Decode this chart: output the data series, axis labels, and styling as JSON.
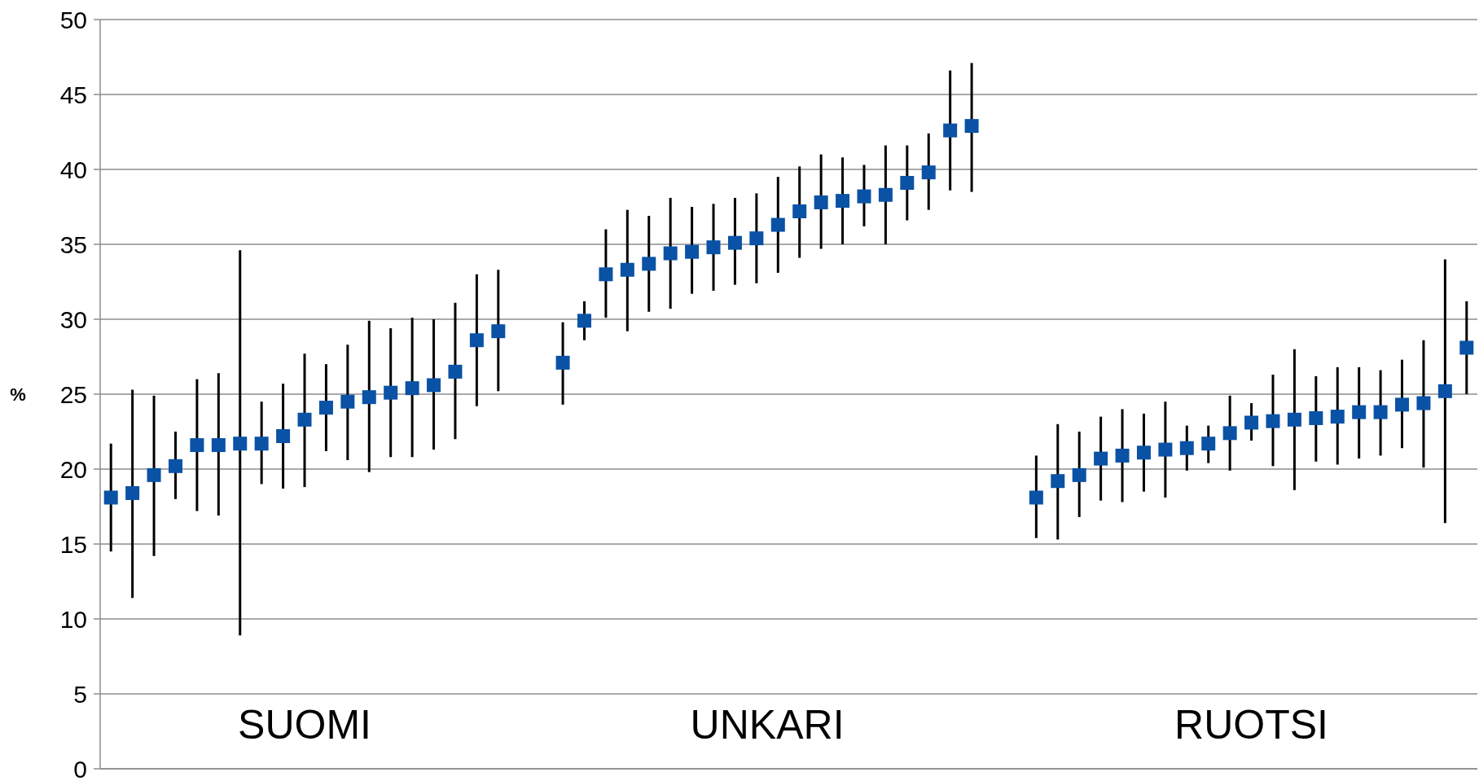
{
  "chart_data": {
    "type": "scatter",
    "ylabel": "%",
    "ylim": [
      0,
      50
    ],
    "yticks": [
      0,
      5,
      10,
      15,
      20,
      25,
      30,
      35,
      40,
      45,
      50
    ],
    "grid": "y",
    "marker": "square",
    "categories": [
      null,
      null,
      null,
      null,
      null,
      null,
      null,
      null,
      null,
      null,
      null,
      null,
      null,
      null,
      null,
      null,
      null,
      null,
      null,
      null,
      null,
      null,
      null,
      null,
      null,
      null,
      null,
      null,
      null,
      null,
      null,
      null,
      null,
      null,
      null,
      null,
      null,
      null,
      null,
      null,
      null,
      null,
      null,
      null,
      null,
      null,
      null,
      null,
      null,
      null,
      null,
      null,
      null,
      null,
      null,
      null,
      null,
      null,
      null,
      null,
      null,
      null,
      null,
      null
    ],
    "series": [
      {
        "color": "#0a52a5",
        "values": [
          18.1,
          18.4,
          19.6,
          20.2,
          21.6,
          21.6,
          21.7,
          21.7,
          22.2,
          23.3,
          24.1,
          24.5,
          24.8,
          25.1,
          25.4,
          25.6,
          26.5,
          28.6,
          29.2,
          null,
          null,
          27.1,
          29.9,
          33.0,
          33.3,
          33.7,
          34.4,
          34.5,
          34.8,
          35.1,
          35.4,
          36.3,
          37.2,
          37.8,
          37.9,
          38.2,
          38.3,
          39.1,
          39.8,
          42.6,
          42.9,
          null,
          null,
          18.1,
          19.2,
          19.6,
          20.7,
          20.9,
          21.1,
          21.3,
          21.4,
          21.7,
          22.4,
          23.1,
          23.2,
          23.3,
          23.4,
          23.5,
          23.8,
          23.8,
          24.3,
          24.4,
          25.2,
          28.1
        ],
        "errors": [
          [
            14.5,
            21.7
          ],
          [
            11.4,
            25.3
          ],
          [
            14.2,
            24.9
          ],
          [
            18.0,
            22.5
          ],
          [
            17.2,
            26.0
          ],
          [
            16.9,
            26.4
          ],
          [
            8.9,
            34.6
          ],
          [
            19.0,
            24.5
          ],
          [
            18.7,
            25.7
          ],
          [
            18.8,
            27.7
          ],
          [
            21.2,
            27.0
          ],
          [
            20.6,
            28.3
          ],
          [
            19.8,
            29.9
          ],
          [
            20.8,
            29.4
          ],
          [
            20.8,
            30.1
          ],
          [
            21.3,
            30.0
          ],
          [
            22.0,
            31.1
          ],
          [
            24.2,
            33.0
          ],
          [
            25.2,
            33.3
          ],
          null,
          null,
          [
            24.3,
            29.8
          ],
          [
            28.6,
            31.2
          ],
          [
            30.1,
            36.0
          ],
          [
            29.2,
            37.3
          ],
          [
            30.5,
            36.9
          ],
          [
            30.7,
            38.1
          ],
          [
            31.7,
            37.5
          ],
          [
            31.9,
            37.7
          ],
          [
            32.3,
            38.1
          ],
          [
            32.4,
            38.4
          ],
          [
            33.1,
            39.5
          ],
          [
            34.1,
            40.2
          ],
          [
            34.7,
            41.0
          ],
          [
            35.0,
            40.8
          ],
          [
            36.2,
            40.3
          ],
          [
            35.0,
            41.6
          ],
          [
            36.6,
            41.6
          ],
          [
            37.3,
            42.4
          ],
          [
            38.6,
            46.6
          ],
          [
            38.5,
            47.1
          ],
          null,
          null,
          [
            15.4,
            20.9
          ],
          [
            15.3,
            23.0
          ],
          [
            16.8,
            22.5
          ],
          [
            17.9,
            23.5
          ],
          [
            17.8,
            24.0
          ],
          [
            18.5,
            23.7
          ],
          [
            18.1,
            24.5
          ],
          [
            19.9,
            22.9
          ],
          [
            20.4,
            22.9
          ],
          [
            19.9,
            24.9
          ],
          [
            21.9,
            24.4
          ],
          [
            20.2,
            26.3
          ],
          [
            18.6,
            28.0
          ],
          [
            20.5,
            26.2
          ],
          [
            20.3,
            26.8
          ],
          [
            20.7,
            26.8
          ],
          [
            20.9,
            26.6
          ],
          [
            21.4,
            27.3
          ],
          [
            20.1,
            28.6
          ],
          [
            16.4,
            34.0
          ],
          [
            25.0,
            31.2
          ]
        ]
      }
    ],
    "annotations": [
      "SUOMI",
      "UNKARI",
      "RUOTSI"
    ]
  }
}
